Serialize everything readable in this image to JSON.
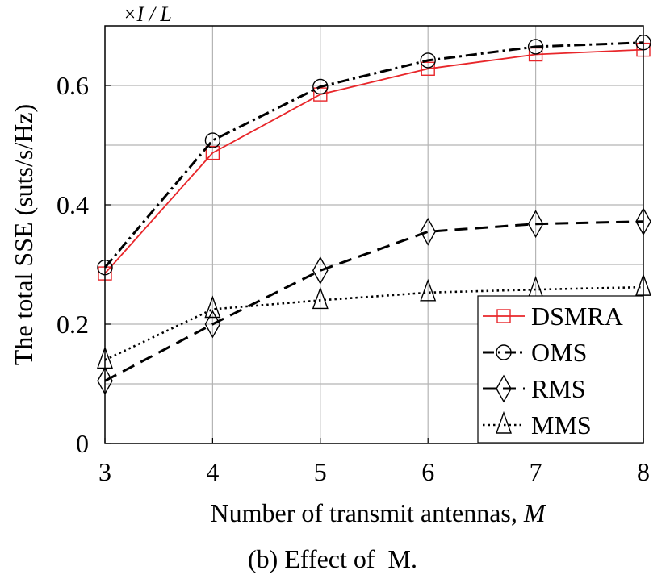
{
  "chart_data": {
    "type": "line",
    "caption": "(b) Effect of  M.",
    "xlabel": "Number of transmit antennas, ",
    "xlabel_var": "M",
    "ylabel": "The total SSE (suts/s/Hz)",
    "yscale_note": "×I / L",
    "x": [
      3,
      4,
      5,
      6,
      7,
      8
    ],
    "xlim": [
      3,
      8
    ],
    "ylim": [
      0,
      0.7
    ],
    "xticks": [
      "3",
      "4",
      "5",
      "6",
      "7",
      "8"
    ],
    "yticks": [
      {
        "value": 0,
        "label": "0"
      },
      {
        "value": 0.2,
        "label": "0.2"
      },
      {
        "value": 0.4,
        "label": "0.4"
      },
      {
        "value": 0.6,
        "label": "0.6"
      }
    ],
    "grid": true,
    "grid_y_values": [
      0.1,
      0.2,
      0.3,
      0.4,
      0.5,
      0.6
    ],
    "legend_position": "bottom-right",
    "series": [
      {
        "name": "DSMRA",
        "values": [
          0.285,
          0.487,
          0.585,
          0.628,
          0.652,
          0.66
        ],
        "color": "#e8262a",
        "dash": "solid",
        "marker": "square"
      },
      {
        "name": "OMS",
        "values": [
          0.295,
          0.508,
          0.598,
          0.642,
          0.665,
          0.672
        ],
        "color": "#000000",
        "dash": "dashdot",
        "marker": "circle"
      },
      {
        "name": "RMS",
        "values": [
          0.105,
          0.2,
          0.29,
          0.355,
          0.368,
          0.372
        ],
        "color": "#000000",
        "dash": "dashed",
        "marker": "diamond"
      },
      {
        "name": "MMS",
        "values": [
          0.14,
          0.225,
          0.24,
          0.253,
          0.258,
          0.262
        ],
        "color": "#000000",
        "dash": "dotted",
        "marker": "triangle"
      }
    ]
  }
}
